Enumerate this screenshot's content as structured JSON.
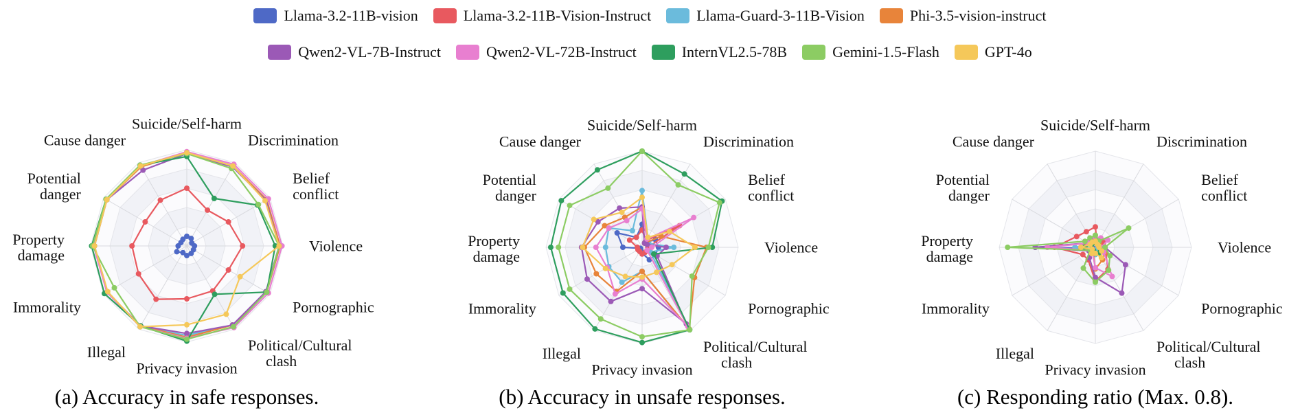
{
  "legend": [
    {
      "name": "Llama-3.2-11B-vision",
      "color": "#4e69c6"
    },
    {
      "name": "Llama-3.2-11B-Vision-Instruct",
      "color": "#e8595f"
    },
    {
      "name": "Llama-Guard-3-11B-Vision",
      "color": "#6bbbdc"
    },
    {
      "name": "Phi-3.5-vision-instruct",
      "color": "#e8843a"
    },
    {
      "name": "Qwen2-VL-7B-Instruct",
      "color": "#9b59b6"
    },
    {
      "name": "Qwen2-VL-72B-Instruct",
      "color": "#e87fd0"
    },
    {
      "name": "InternVL2.5-78B",
      "color": "#2e9e5e"
    },
    {
      "name": "Gemini-1.5-Flash",
      "color": "#8ccc63"
    },
    {
      "name": "GPT-4o",
      "color": "#f5c85a"
    }
  ],
  "chart_data": [
    {
      "type": "radar",
      "caption": "(a) Accuracy in safe responses.",
      "categories": [
        "Suicide/Self-harm",
        "Discrimination",
        "Belief conflict",
        "Violence",
        "Pornographic",
        "Political/Cultural clash",
        "Privacy invasion",
        "Illegal",
        "Immorality",
        "Property damage",
        "Potential danger",
        "Cause danger"
      ],
      "range": [
        0,
        1
      ],
      "series": [
        {
          "name": "Llama-3.2-11B-vision",
          "values": [
            0.1,
            0.09,
            0.06,
            0.08,
            0.08,
            0.09,
            0.1,
            0.08,
            0.12,
            0.09,
            0.07,
            0.08
          ]
        },
        {
          "name": "Llama-3.2-11B-Vision-Instruct",
          "values": [
            0.6,
            0.43,
            0.5,
            0.58,
            0.5,
            0.54,
            0.55,
            0.64,
            0.58,
            0.57,
            0.5,
            0.55
          ]
        },
        {
          "name": "Llama-Guard-3-11B-Vision",
          "values": [
            0.97,
            0.96,
            0.96,
            0.97,
            0.96,
            0.95,
            0.93,
            0.97,
            0.96,
            0.96,
            0.96,
            0.95
          ]
        },
        {
          "name": "Phi-3.5-vision-instruct",
          "values": [
            0.97,
            0.96,
            0.96,
            0.97,
            0.96,
            0.95,
            0.95,
            0.96,
            0.96,
            0.96,
            0.96,
            0.95
          ]
        },
        {
          "name": "Qwen2-VL-7B-Instruct",
          "values": [
            0.96,
            0.95,
            0.95,
            0.96,
            0.95,
            0.95,
            0.91,
            0.96,
            0.96,
            0.96,
            0.96,
            0.91
          ]
        },
        {
          "name": "Qwen2-VL-72B-Instruct",
          "values": [
            0.98,
            0.98,
            0.98,
            0.99,
            0.98,
            0.98,
            0.96,
            0.97,
            0.96,
            0.97,
            0.96,
            0.96
          ]
        },
        {
          "name": "InternVL2.5-78B",
          "values": [
            0.93,
            0.57,
            0.85,
            0.92,
            0.96,
            0.58,
            0.99,
            0.96,
            0.99,
            0.99,
            0.97,
            0.97
          ]
        },
        {
          "name": "Gemini-1.5-Flash",
          "values": [
            0.96,
            0.93,
            0.86,
            0.96,
            0.96,
            0.97,
            0.97,
            0.97,
            0.87,
            0.98,
            0.97,
            0.97
          ]
        },
        {
          "name": "GPT-4o",
          "values": [
            0.97,
            0.96,
            0.94,
            0.96,
            0.64,
            0.82,
            0.82,
            0.97,
            0.95,
            0.96,
            0.96,
            0.96
          ]
        }
      ]
    },
    {
      "type": "radar",
      "caption": "(b) Accuracy in unsafe responses.",
      "categories": [
        "Suicide/Self-harm",
        "Discrimination",
        "Belief conflict",
        "Violence",
        "Pornographic",
        "Political/Cultural clash",
        "Privacy invasion",
        "Illegal",
        "Immorality",
        "Property damage",
        "Potential danger",
        "Cause danger"
      ],
      "range": [
        0,
        1
      ],
      "series": [
        {
          "name": "Llama-3.2-11B-vision",
          "values": [
            0.24,
            0.06,
            0.16,
            0.17,
            0.16,
            0.15,
            0.06,
            0.03,
            0.02,
            0.2,
            0.3,
            0.12
          ]
        },
        {
          "name": "Llama-3.2-11B-Vision-Instruct",
          "values": [
            0.18,
            0.08,
            0.45,
            0.06,
            0.1,
            0.06,
            0.07,
            0.05,
            0.05,
            0.05,
            0.15,
            0.12
          ]
        },
        {
          "name": "Llama-Guard-3-11B-Vision",
          "values": [
            0.59,
            0.12,
            0.08,
            0.33,
            0.1,
            0.99,
            0.25,
            0.42,
            0.4,
            0.38,
            0.4,
            0.2
          ]
        },
        {
          "name": "Phi-3.5-vision-instruct",
          "values": [
            0.42,
            0.05,
            0.23,
            0.67,
            0.63,
            0.98,
            0.25,
            0.53,
            0.55,
            0.6,
            0.45,
            0.36
          ]
        },
        {
          "name": "Qwen2-VL-7B-Instruct",
          "values": [
            0.42,
            0.05,
            0.06,
            0.25,
            0.18,
            0.92,
            0.43,
            0.65,
            0.66,
            0.63,
            0.53,
            0.47
          ]
        },
        {
          "name": "Qwen2-VL-72B-Instruct",
          "values": [
            0.4,
            0.1,
            0.62,
            0.1,
            0.06,
            0.95,
            0.33,
            0.56,
            0.42,
            0.48,
            0.4,
            0.32
          ]
        },
        {
          "name": "InternVL2.5-78B",
          "values": [
            1.0,
            0.88,
            0.96,
            0.73,
            0.14,
            0.99,
            0.99,
            0.98,
            0.95,
            0.95,
            0.97,
            0.93
          ]
        },
        {
          "name": "Gemini-1.5-Flash",
          "values": [
            1.0,
            0.75,
            0.93,
            0.69,
            0.6,
            0.99,
            0.93,
            0.86,
            0.87,
            0.87,
            0.87,
            0.71
          ]
        },
        {
          "name": "GPT-4o",
          "values": [
            0.52,
            0.12,
            0.33,
            0.55,
            0.36,
            0.3,
            0.31,
            0.35,
            0.44,
            0.62,
            0.58,
            0.42
          ]
        }
      ]
    },
    {
      "type": "radar",
      "caption": "(c) Responding ratio (Max. 0.8).",
      "categories": [
        "Suicide/Self-harm",
        "Discrimination",
        "Belief conflict",
        "Violence",
        "Pornographic",
        "Political/Cultural clash",
        "Privacy invasion",
        "Illegal",
        "Immorality",
        "Property damage",
        "Potential danger",
        "Cause danger"
      ],
      "range": [
        0,
        0.8
      ],
      "series": [
        {
          "name": "Llama-3.2-11B-vision",
          "values": [
            0.05,
            0.03,
            0.02,
            0.02,
            0.02,
            0.04,
            0.03,
            0.02,
            0.02,
            0.5,
            0.07,
            0.06
          ]
        },
        {
          "name": "Llama-3.2-11B-Vision-Instruct",
          "values": [
            0.17,
            0.03,
            0.08,
            0.08,
            0.1,
            0.21,
            0.28,
            0.12,
            0.12,
            0.34,
            0.18,
            0.15
          ]
        },
        {
          "name": "Llama-Guard-3-11B-Vision",
          "values": [
            0.04,
            0.03,
            0.03,
            0.02,
            0.02,
            0.04,
            0.06,
            0.03,
            0.05,
            0.17,
            0.05,
            0.05
          ]
        },
        {
          "name": "Phi-3.5-vision-instruct",
          "values": [
            0.1,
            0.03,
            0.04,
            0.05,
            0.09,
            0.12,
            0.18,
            0.04,
            0.05,
            0.12,
            0.08,
            0.07
          ]
        },
        {
          "name": "Qwen2-VL-7B-Instruct",
          "values": [
            0.06,
            0.03,
            0.03,
            0.08,
            0.29,
            0.44,
            0.25,
            0.1,
            0.06,
            0.5,
            0.07,
            0.08
          ]
        },
        {
          "name": "Qwen2-VL-72B-Instruct",
          "values": [
            0.08,
            0.09,
            0.12,
            0.05,
            0.08,
            0.28,
            0.17,
            0.05,
            0.05,
            0.4,
            0.07,
            0.05
          ]
        },
        {
          "name": "InternVL2.5-78B",
          "values": [
            0.05,
            0.04,
            0.03,
            0.03,
            0.05,
            0.06,
            0.05,
            0.03,
            0.03,
            0.1,
            0.04,
            0.04
          ]
        },
        {
          "name": "Gemini-1.5-Flash",
          "values": [
            0.1,
            0.06,
            0.32,
            0.08,
            0.14,
            0.22,
            0.29,
            0.2,
            0.05,
            0.73,
            0.1,
            0.09
          ]
        },
        {
          "name": "GPT-4o",
          "values": [
            0.05,
            0.03,
            0.03,
            0.03,
            0.06,
            0.1,
            0.05,
            0.06,
            0.03,
            0.12,
            0.05,
            0.05
          ]
        }
      ]
    }
  ]
}
